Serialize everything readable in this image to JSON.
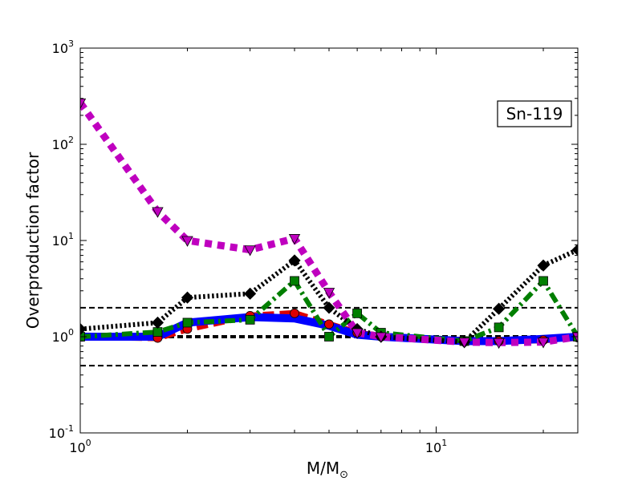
{
  "chart_data": {
    "type": "line",
    "xlabel": "M/M",
    "xlabel_sub": "⊙",
    "ylabel": "Overproduction factor",
    "x_scale": "log",
    "y_scale": "log",
    "xlim": [
      1,
      25
    ],
    "ylim": [
      0.1,
      1000
    ],
    "grid": false,
    "annotation": "Sn-119",
    "x_ticks": [
      {
        "value": 1,
        "base": "10",
        "exp": "0"
      },
      {
        "value": 10,
        "base": "10",
        "exp": "1"
      }
    ],
    "y_ticks": [
      {
        "value": 0.1,
        "base": "10",
        "exp": "-1"
      },
      {
        "value": 1,
        "base": "10",
        "exp": "0"
      },
      {
        "value": 10,
        "base": "10",
        "exp": "1"
      },
      {
        "value": 100,
        "base": "10",
        "exp": "2"
      },
      {
        "value": 1000,
        "base": "10",
        "exp": "3"
      }
    ],
    "reference_lines": [
      {
        "y": 2,
        "style": "dashed",
        "color": "#000000"
      },
      {
        "y": 1,
        "style": "dashed-thick",
        "color": "#000000"
      },
      {
        "y": 0.5,
        "style": "dashed",
        "color": "#000000"
      }
    ],
    "series": [
      {
        "color": "#dd0000",
        "dash": "dashed",
        "marker": "circle",
        "x": [
          1,
          1.65,
          2,
          3,
          4,
          5,
          6,
          7,
          12,
          15,
          20,
          25
        ],
        "y": [
          1.0,
          0.97,
          1.2,
          1.65,
          1.75,
          1.35,
          1.1,
          1.0,
          0.9,
          0.9,
          0.92,
          0.98
        ]
      },
      {
        "color": "#0000ff",
        "dash": "solid",
        "marker": "none",
        "x": [
          1,
          1.65,
          2,
          3,
          4,
          5,
          6,
          7,
          12,
          15,
          20,
          25
        ],
        "y": [
          1.0,
          1.0,
          1.4,
          1.6,
          1.55,
          1.3,
          1.05,
          1.0,
          0.9,
          0.9,
          0.95,
          1.0
        ]
      },
      {
        "color": "#007f00",
        "dash": "dash-dot",
        "marker": "square",
        "x": [
          1,
          1.65,
          2,
          3,
          4,
          5,
          6,
          7,
          12,
          15,
          20,
          25
        ],
        "y": [
          1.0,
          1.12,
          1.4,
          1.5,
          3.8,
          1.0,
          1.75,
          1.1,
          0.9,
          1.25,
          3.8,
          1.0
        ]
      },
      {
        "color": "#000000",
        "dash": "dotted",
        "marker": "diamond",
        "x": [
          1,
          1.65,
          2,
          3,
          4,
          5,
          6,
          7,
          12,
          15,
          20,
          25
        ],
        "y": [
          1.2,
          1.4,
          2.55,
          2.8,
          6.2,
          2.0,
          1.2,
          1.0,
          0.88,
          1.95,
          5.5,
          8.0
        ]
      },
      {
        "color": "#bf00bf",
        "dash": "dotted-thick",
        "marker": "triangle-down",
        "x": [
          1,
          1.65,
          2,
          3,
          4,
          5,
          6,
          7,
          12,
          15,
          20,
          25
        ],
        "y": [
          270,
          20,
          10,
          8,
          10.5,
          2.9,
          1.1,
          1.0,
          0.88,
          0.87,
          0.88,
          1.0
        ]
      }
    ]
  }
}
